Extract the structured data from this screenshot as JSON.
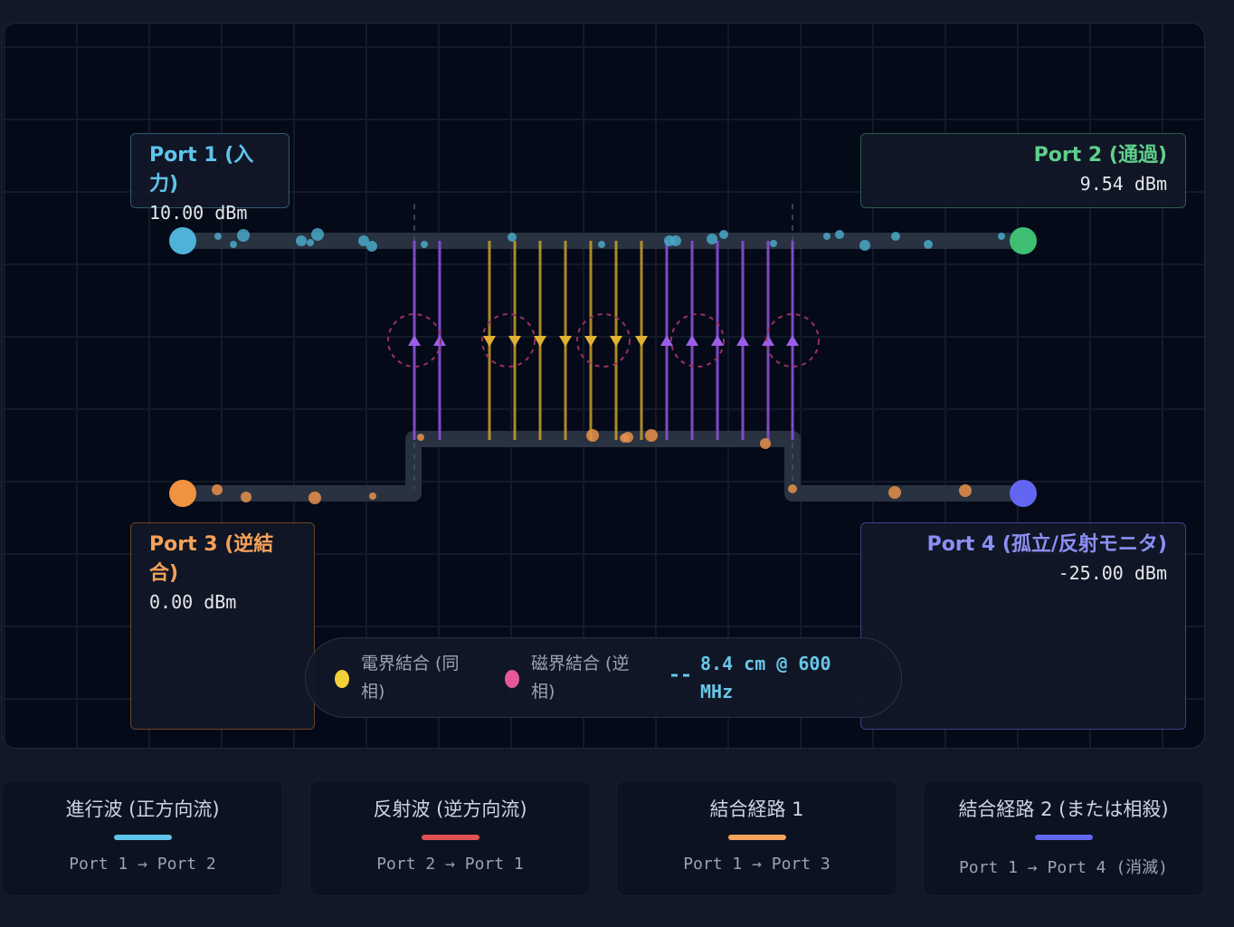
{
  "ports": [
    {
      "name": "Port 1 (入力)",
      "power": "10.00 dBm"
    },
    {
      "name": "Port 2 (通過)",
      "power": "9.54 dBm"
    },
    {
      "name": "Port 3 (逆結合)",
      "power": "0.00 dBm"
    },
    {
      "name": "Port 4 (孤立/反射モニタ)",
      "power": "-25.00 dBm"
    }
  ],
  "legend": {
    "items": [
      "電界結合 (同相)",
      "磁界結合 (逆相)"
    ],
    "scale": "8.4 cm @ 600 MHz"
  },
  "cards": [
    {
      "title": "進行波 (正方向流)",
      "route": "Port 1 → Port 2"
    },
    {
      "title": "反射波 (逆方向流)",
      "route": "Port 2 → Port 1"
    },
    {
      "title": "結合経路 1",
      "route": "Port 1 → Port 3"
    },
    {
      "title": "結合経路 2 (または相殺)",
      "route": "Port 1 → Port 4 (消滅)"
    }
  ]
}
